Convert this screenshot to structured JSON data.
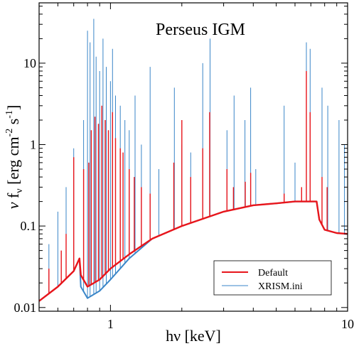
{
  "chart_data": {
    "type": "line",
    "title": "Perseus IGM",
    "xlabel": {
      "prefix": "h",
      "greek": "ν",
      "suffix": " [keV]"
    },
    "ylabel": {
      "nu": "ν",
      "f": " f",
      "sub": "ν",
      "open": " [erg cm",
      "exp1": "-2",
      "mid": " s",
      "exp2": "-1",
      "close": "]"
    },
    "x_scale": "log",
    "y_scale": "log",
    "xlim": [
      0.5,
      10
    ],
    "ylim": [
      0.009,
      55
    ],
    "x_ticks": [
      {
        "value": 1,
        "label": "1"
      },
      {
        "value": 10,
        "label": "10"
      }
    ],
    "y_ticks": [
      {
        "value": 0.01,
        "label": "0.01"
      },
      {
        "value": 0.1,
        "label": "0.1"
      },
      {
        "value": 1,
        "label": "1"
      },
      {
        "value": 10,
        "label": "10"
      }
    ],
    "grid": false,
    "legend_position": "lower-right",
    "series": [
      {
        "name": "Default",
        "color": "#e8151b",
        "continuum": [
          [
            0.5,
            0.012
          ],
          [
            0.6,
            0.018
          ],
          [
            0.7,
            0.028
          ],
          [
            0.74,
            0.04
          ],
          [
            0.75,
            0.025
          ],
          [
            0.8,
            0.018
          ],
          [
            0.9,
            0.022
          ],
          [
            1.0,
            0.03
          ],
          [
            1.2,
            0.045
          ],
          [
            1.5,
            0.07
          ],
          [
            2.0,
            0.1
          ],
          [
            3.0,
            0.15
          ],
          [
            4.0,
            0.18
          ],
          [
            5.0,
            0.19
          ],
          [
            6.0,
            0.2
          ],
          [
            7.0,
            0.2
          ],
          [
            7.4,
            0.2
          ],
          [
            7.6,
            0.12
          ],
          [
            8.0,
            0.09
          ],
          [
            9.0,
            0.082
          ],
          [
            10.0,
            0.08
          ]
        ],
        "lines": [
          [
            0.55,
            0.03
          ],
          [
            0.62,
            0.05
          ],
          [
            0.65,
            0.08
          ],
          [
            0.7,
            0.7
          ],
          [
            0.77,
            0.5
          ],
          [
            0.81,
            0.6
          ],
          [
            0.83,
            1.5
          ],
          [
            0.86,
            2.2
          ],
          [
            0.89,
            1.8
          ],
          [
            0.92,
            3.0
          ],
          [
            0.95,
            2.0
          ],
          [
            0.98,
            1.5
          ],
          [
            1.02,
            2.5
          ],
          [
            1.05,
            1.2
          ],
          [
            1.1,
            0.9
          ],
          [
            1.13,
            0.8
          ],
          [
            1.2,
            0.5
          ],
          [
            1.26,
            0.4
          ],
          [
            1.35,
            0.3
          ],
          [
            1.47,
            0.25
          ],
          [
            1.85,
            0.6
          ],
          [
            2.0,
            2.0
          ],
          [
            2.18,
            0.4
          ],
          [
            2.45,
            0.9
          ],
          [
            2.62,
            2.5
          ],
          [
            3.1,
            0.5
          ],
          [
            3.3,
            0.3
          ],
          [
            3.7,
            0.35
          ],
          [
            3.9,
            0.45
          ],
          [
            5.4,
            0.25
          ],
          [
            6.4,
            0.3
          ],
          [
            6.7,
            8.0
          ],
          [
            6.95,
            2.5
          ],
          [
            7.8,
            0.4
          ],
          [
            8.2,
            0.3
          ]
        ]
      },
      {
        "name": "XRISM.ini",
        "color": "#3a86c8",
        "continuum": [
          [
            0.5,
            0.012
          ],
          [
            0.6,
            0.018
          ],
          [
            0.7,
            0.028
          ],
          [
            0.74,
            0.04
          ],
          [
            0.75,
            0.018
          ],
          [
            0.8,
            0.013
          ],
          [
            0.9,
            0.016
          ],
          [
            1.0,
            0.022
          ],
          [
            1.2,
            0.04
          ],
          [
            1.5,
            0.07
          ],
          [
            2.0,
            0.1
          ],
          [
            3.0,
            0.15
          ],
          [
            4.0,
            0.18
          ],
          [
            5.0,
            0.19
          ],
          [
            6.0,
            0.2
          ],
          [
            7.0,
            0.2
          ],
          [
            7.4,
            0.2
          ],
          [
            7.6,
            0.12
          ],
          [
            8.0,
            0.09
          ],
          [
            9.0,
            0.082
          ],
          [
            10.0,
            0.08
          ]
        ],
        "lines": [
          [
            0.55,
            0.06
          ],
          [
            0.6,
            0.15
          ],
          [
            0.65,
            0.3
          ],
          [
            0.7,
            0.9
          ],
          [
            0.77,
            2.0
          ],
          [
            0.8,
            25.0
          ],
          [
            0.82,
            18.0
          ],
          [
            0.85,
            35.0
          ],
          [
            0.87,
            12.0
          ],
          [
            0.9,
            8.0
          ],
          [
            0.93,
            20.0
          ],
          [
            0.96,
            9.0
          ],
          [
            1.0,
            6.0
          ],
          [
            1.02,
            15.0
          ],
          [
            1.05,
            4.0
          ],
          [
            1.1,
            3.0
          ],
          [
            1.15,
            2.0
          ],
          [
            1.2,
            1.5
          ],
          [
            1.27,
            4.0
          ],
          [
            1.35,
            1.0
          ],
          [
            1.47,
            9.0
          ],
          [
            1.6,
            0.5
          ],
          [
            1.86,
            5.0
          ],
          [
            2.0,
            1.0
          ],
          [
            2.18,
            0.8
          ],
          [
            2.45,
            10.0
          ],
          [
            2.63,
            20.0
          ],
          [
            3.1,
            1.5
          ],
          [
            3.32,
            4.0
          ],
          [
            3.69,
            2.0
          ],
          [
            3.9,
            5.0
          ],
          [
            4.1,
            0.5
          ],
          [
            5.4,
            3.0
          ],
          [
            6.0,
            0.6
          ],
          [
            6.7,
            18.0
          ],
          [
            6.95,
            15.0
          ],
          [
            7.8,
            5.0
          ],
          [
            8.25,
            3.0
          ],
          [
            9.2,
            2.0
          ],
          [
            9.7,
            1.0
          ]
        ]
      }
    ]
  }
}
